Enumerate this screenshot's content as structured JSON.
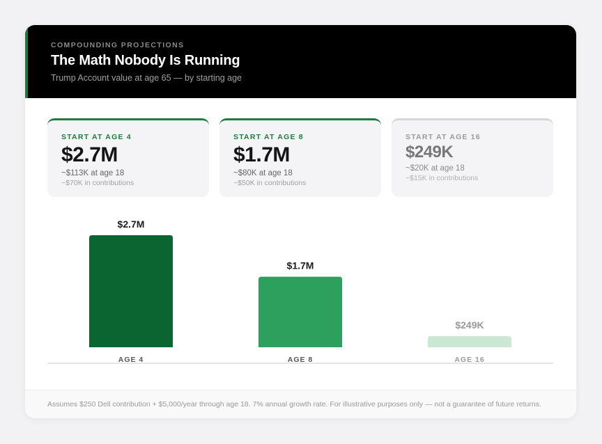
{
  "header": {
    "eyebrow": "COMPOUNDING PROJECTIONS",
    "title": "The Math Nobody Is Running",
    "subtitle": "Trump Account value at age 65 — by starting age"
  },
  "stats": [
    {
      "label": "START AT AGE 4",
      "value": "$2.7M",
      "at18": "~$113K at age 18",
      "contrib": "~$70K in contributions"
    },
    {
      "label": "START AT AGE 8",
      "value": "$1.7M",
      "at18": "~$80K at age 18",
      "contrib": "~$50K in contributions"
    },
    {
      "label": "START AT AGE 16",
      "value": "$249K",
      "at18": "~$20K at age 18",
      "contrib": "~$15K in contributions"
    }
  ],
  "colors": {
    "accent": "#1e7a3e",
    "bar_age4": "#0b6530",
    "bar_age8": "#2ca05c",
    "bar_age16": "#cce8d4"
  },
  "chart_data": {
    "type": "bar",
    "categories": [
      "AGE 4",
      "AGE 8",
      "AGE 16"
    ],
    "values": [
      2700000,
      1700000,
      249000
    ],
    "value_labels": [
      "$2.7M",
      "$1.7M",
      "$249K"
    ],
    "ylim": [
      0,
      2700000
    ],
    "grid": false
  },
  "footer": {
    "note": "Assumes $250 Dell contribution + $5,000/year through age 18. 7% annual growth rate. For illustrative purposes only — not a guarantee of future returns."
  }
}
